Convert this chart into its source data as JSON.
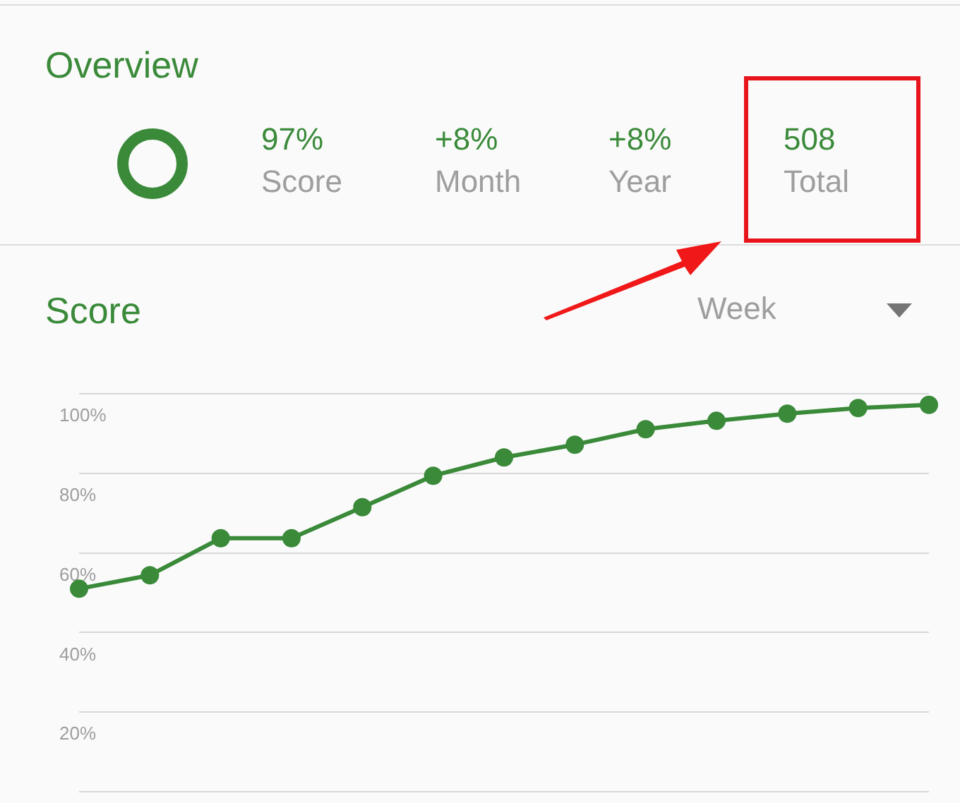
{
  "chart_data": {
    "type": "line",
    "title": "Score",
    "annotations": [
      "Overview",
      "97%",
      "Score",
      "+8%",
      "Month",
      "+8%",
      "Year",
      "508",
      "Total",
      "Week"
    ],
    "categories": [
      null,
      null,
      null,
      null,
      null,
      null,
      null,
      null,
      null,
      null,
      null,
      null,
      null
    ],
    "series": [
      {
        "color": "#3a8a3a",
        "values": [
          51,
          54.4,
          63.7,
          63.7,
          71.5,
          79.4,
          84,
          87.2,
          91.1,
          93.2,
          95,
          96.4,
          97.2
        ]
      }
    ],
    "ylim": [
      0,
      100
    ],
    "yticks": [
      {
        "value": 0,
        "label": null
      },
      {
        "value": 20,
        "label": "20%"
      },
      {
        "value": 40,
        "label": "40%"
      },
      {
        "value": 60,
        "label": "60%"
      },
      {
        "value": 80,
        "label": "80%"
      },
      {
        "value": 100,
        "label": "100%"
      }
    ],
    "grid": "y",
    "tick_labels": "y",
    "marker": "circle",
    "line_style": "solid"
  }
}
